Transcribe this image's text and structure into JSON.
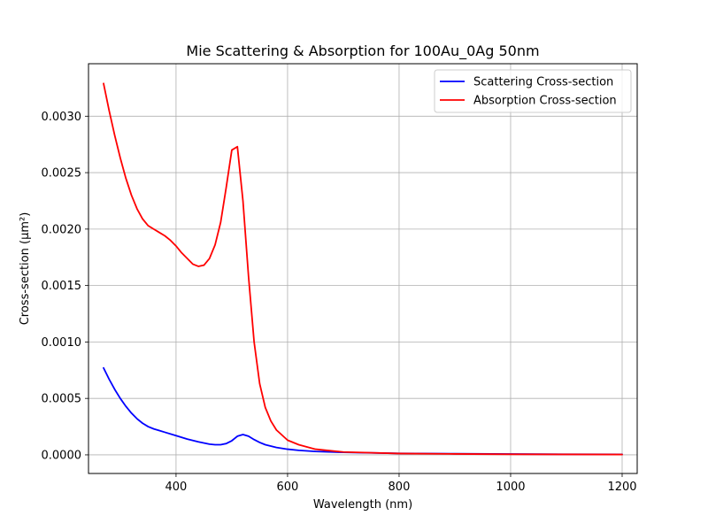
{
  "chart_data": {
    "type": "line",
    "title": "Mie Scattering & Absorption for 100Au_0Ag 50nm",
    "xlabel": "Wavelength (nm)",
    "ylabel": "Cross-section (µm²)",
    "xlim": [
      243,
      1227
    ],
    "ylim": [
      -0.000165,
      0.003465
    ],
    "xticks": [
      400,
      600,
      800,
      1000,
      1200
    ],
    "xtick_labels": [
      "400",
      "600",
      "800",
      "1000",
      "1200"
    ],
    "yticks": [
      0.0,
      0.0005,
      0.001,
      0.0015,
      0.002,
      0.0025,
      0.003
    ],
    "ytick_labels": [
      "0.0000",
      "0.0005",
      "0.0010",
      "0.0015",
      "0.0020",
      "0.0025",
      "0.0030"
    ],
    "grid": true,
    "legend_position": "top-right",
    "series": [
      {
        "name": "Scattering Cross-section",
        "color": "#0000ff",
        "x": [
          270,
          280,
          290,
          300,
          310,
          320,
          330,
          340,
          350,
          360,
          370,
          380,
          400,
          420,
          440,
          460,
          470,
          480,
          490,
          500,
          510,
          520,
          530,
          540,
          550,
          560,
          580,
          600,
          620,
          650,
          700,
          800,
          900,
          1000,
          1100,
          1200
        ],
        "y": [
          0.00077,
          0.00067,
          0.00058,
          0.0005,
          0.00043,
          0.00037,
          0.00032,
          0.00028,
          0.00025,
          0.00023,
          0.000215,
          0.0002,
          0.00017,
          0.00014,
          0.000115,
          9.5e-05,
          9e-05,
          9e-05,
          0.0001,
          0.000125,
          0.000165,
          0.00018,
          0.000165,
          0.000135,
          0.00011,
          9e-05,
          6.5e-05,
          5e-05,
          4e-05,
          3e-05,
          2.2e-05,
          1.3e-05,
          1e-05,
          7e-06,
          5e-06,
          4e-06
        ]
      },
      {
        "name": "Absorption Cross-section",
        "color": "#ff0000",
        "x": [
          270,
          280,
          290,
          300,
          310,
          320,
          330,
          340,
          350,
          360,
          370,
          380,
          390,
          400,
          410,
          420,
          430,
          440,
          450,
          460,
          470,
          480,
          490,
          500,
          510,
          520,
          530,
          540,
          550,
          560,
          570,
          580,
          600,
          620,
          650,
          700,
          800,
          900,
          1000,
          1100,
          1200
        ],
        "y": [
          0.00329,
          0.00305,
          0.00283,
          0.00263,
          0.00245,
          0.0023,
          0.00218,
          0.00209,
          0.00203,
          0.002,
          0.00197,
          0.00194,
          0.0019,
          0.00185,
          0.00179,
          0.00174,
          0.00169,
          0.00167,
          0.00168,
          0.00174,
          0.00186,
          0.00206,
          0.00237,
          0.0027,
          0.00273,
          0.00225,
          0.00158,
          0.001,
          0.00063,
          0.00042,
          0.0003,
          0.00022,
          0.00013,
          9e-05,
          5e-05,
          2.5e-05,
          1.2e-05,
          8e-06,
          5e-06,
          4e-06,
          3e-06
        ]
      }
    ]
  }
}
